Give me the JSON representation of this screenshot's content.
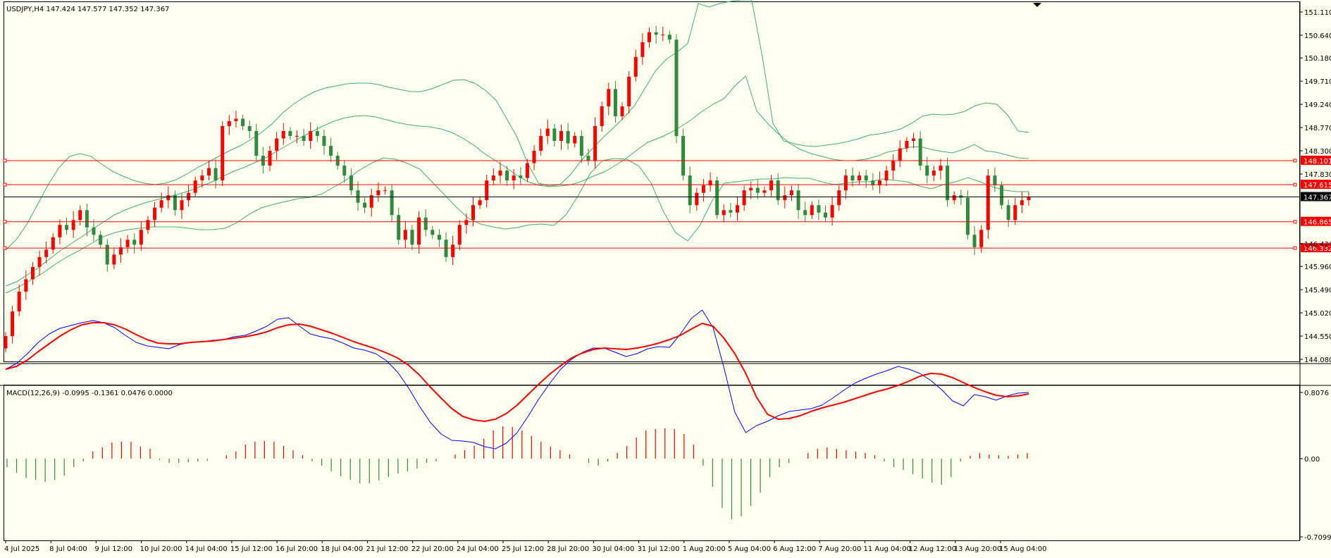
{
  "header": {
    "symbol_info": "USDJPY,H4  147.424 147.577 147.352 147.367",
    "macd_info": "MACD(12,26,9) -0.0995 -0.1361 0.0476 0.0000"
  },
  "colors": {
    "background": "#fffff0",
    "bull": "#ff0000",
    "bear": "#2e8b3e",
    "bands": "#3cb371",
    "level": "#ff0000",
    "macd_line": "#0000ff",
    "signal_line": "#ff0000"
  },
  "chart_data": [
    {
      "type": "candlestick",
      "title": "USDJPY,H4",
      "ylim": [
        144.08,
        151.3
      ],
      "price_ticks": [
        "151.110",
        "150.640",
        "150.180",
        "149.710",
        "149.240",
        "148.770",
        "148.300",
        "147.830",
        "147.367",
        "146.420",
        "145.960",
        "145.490",
        "145.020",
        "144.550",
        "144.080"
      ],
      "x_labels": [
        "4 Jul 2025",
        "8 Jul 04:00",
        "9 Jul 12:00",
        "10 Jul 20:00",
        "14 Jul 04:00",
        "15 Jul 12:00",
        "16 Jul 20:00",
        "18 Jul 04:00",
        "21 Jul 12:00",
        "22 Jul 20:00",
        "24 Jul 04:00",
        "25 Jul 12:00",
        "28 Jul 20:00",
        "30 Jul 04:00",
        "31 Jul 12:00",
        "1 Aug 20:00",
        "5 Aug 04:00",
        "6 Aug 12:00",
        "7 Aug 20:00",
        "11 Aug 04:00",
        "12 Aug 12:00",
        "13 Aug 20:00",
        "15 Aug 04:00"
      ],
      "horizontal_levels": [
        {
          "value": 148.101,
          "label": "148.101"
        },
        {
          "value": 147.615,
          "label": "147.615"
        },
        {
          "value": 146.865,
          "label": "146.865"
        },
        {
          "value": 146.332,
          "label": "146.332"
        }
      ],
      "current_price": {
        "value": 147.367,
        "label": "147.367"
      },
      "closes": [
        144.55,
        145.05,
        145.45,
        145.7,
        145.95,
        146.15,
        146.3,
        146.55,
        146.8,
        146.7,
        146.9,
        147.1,
        146.75,
        146.6,
        146.4,
        146.0,
        146.2,
        146.35,
        146.5,
        146.4,
        146.7,
        146.9,
        147.15,
        147.3,
        147.4,
        147.1,
        147.3,
        147.45,
        147.7,
        147.8,
        147.95,
        147.7,
        148.8,
        148.9,
        148.95,
        148.8,
        148.7,
        148.2,
        148.0,
        148.3,
        148.55,
        148.7,
        148.6,
        148.6,
        148.5,
        148.7,
        148.6,
        148.4,
        148.2,
        148.0,
        147.8,
        147.5,
        147.25,
        147.15,
        147.4,
        147.5,
        147.5,
        147.0,
        146.5,
        146.7,
        146.4,
        146.95,
        146.7,
        146.6,
        146.5,
        146.15,
        146.4,
        146.8,
        146.9,
        147.2,
        147.3,
        147.7,
        147.8,
        147.9,
        147.7,
        147.8,
        147.75,
        148.05,
        148.3,
        148.6,
        148.75,
        148.5,
        148.7,
        148.45,
        148.6,
        148.2,
        148.1,
        148.8,
        149.2,
        149.55,
        149.0,
        149.2,
        149.8,
        150.2,
        150.5,
        150.7,
        150.65,
        150.65,
        150.55,
        148.6,
        147.8,
        147.2,
        147.45,
        147.6,
        147.7,
        147.0,
        147.1,
        147.05,
        147.2,
        147.5,
        147.55,
        147.45,
        147.5,
        147.7,
        147.3,
        147.4,
        147.5,
        147.1,
        147.0,
        147.2,
        147.05,
        146.95,
        147.2,
        147.5,
        147.8,
        147.7,
        147.8,
        147.7,
        147.6,
        147.7,
        147.9,
        148.1,
        148.35,
        148.5,
        148.55,
        148.0,
        147.8,
        147.9,
        148.0,
        147.3,
        147.4,
        147.35,
        146.6,
        146.35,
        146.7,
        147.8,
        147.6,
        147.2,
        146.9,
        147.2,
        147.3,
        147.37
      ],
      "band_middle_px": [
        406,
        400,
        390,
        380,
        368,
        356,
        346,
        336,
        325,
        315,
        305,
        298,
        292,
        287,
        283,
        279,
        275,
        270,
        264,
        258,
        250,
        243,
        237,
        230,
        223,
        214,
        205,
        196,
        188,
        180,
        173,
        168,
        165,
        164,
        166,
        170,
        174,
        177,
        179,
        180,
        183,
        188,
        196,
        206,
        218,
        228,
        238,
        249,
        258,
        263,
        265,
        264,
        262,
        257,
        250,
        244,
        235,
        225,
        213,
        202,
        196,
        189,
        180,
        170,
        158,
        148,
        140,
        122,
        108,
        157,
        175,
        190,
        203,
        212,
        218,
        222,
        226,
        228,
        228,
        226,
        222,
        216,
        213,
        209,
        208,
        212,
        215,
        217,
        212,
        205,
        214,
        216,
        220,
        224,
        225
      ],
      "band_upper_px": [
        355,
        340,
        318,
        290,
        262,
        238,
        222,
        218,
        222,
        233,
        243,
        250,
        256,
        260,
        262,
        260,
        255,
        247,
        238,
        230,
        222,
        214,
        207,
        198,
        188,
        176,
        160,
        148,
        138,
        130,
        125,
        122,
        119,
        118,
        118,
        120,
        124,
        127,
        130,
        130,
        126,
        120,
        114,
        113,
        118,
        128,
        142,
        168,
        195,
        232,
        260,
        264,
        262,
        248,
        228,
        212,
        196,
        182,
        167,
        150,
        125,
        100,
        84,
        74,
        62,
        5,
        10,
        5,
        2,
        0,
        0,
        80,
        175,
        200,
        204,
        207,
        208,
        206,
        204,
        201,
        197,
        192,
        190,
        187,
        183,
        175,
        165,
        162,
        163,
        162,
        158,
        150,
        146,
        148,
        163,
        186,
        188
      ],
      "band_lower_px": [
        416,
        408,
        398,
        388,
        376,
        365,
        356,
        346,
        336,
        330,
        326,
        324,
        322,
        322,
        322,
        324,
        326,
        326,
        324,
        316,
        304,
        295,
        290,
        286,
        282,
        280,
        275,
        265,
        255,
        242,
        232,
        224,
        226,
        232,
        240,
        258,
        276,
        294,
        310,
        318,
        322,
        325,
        323,
        319,
        318,
        320,
        305,
        278,
        246,
        228,
        225,
        226,
        236,
        260,
        300,
        330,
        342,
        320,
        285,
        260,
        258,
        256,
        254,
        254,
        252,
        253,
        253,
        258,
        262,
        260,
        258,
        258,
        254,
        256,
        258,
        264,
        268,
        262,
        258,
        252,
        258,
        265,
        270,
        272,
        272
      ],
      "macd_line_px": [
        524,
        516,
        502,
        486,
        474,
        466,
        462,
        458,
        455,
        458,
        465,
        476,
        486,
        491,
        493,
        495,
        489,
        486,
        485,
        483,
        482,
        478,
        476,
        470,
        463,
        453,
        451,
        463,
        474,
        478,
        481,
        487,
        494,
        497,
        502,
        512,
        528,
        550,
        576,
        599,
        616,
        625,
        626,
        628,
        634,
        637,
        629,
        614,
        591,
        566,
        544,
        524,
        510,
        500,
        494,
        494,
        500,
        506,
        502,
        495,
        492,
        493,
        474,
        452,
        440,
        465,
        522,
        585,
        614,
        604,
        598,
        590,
        584,
        582,
        580,
        575,
        565,
        554,
        544,
        537,
        531,
        526,
        520,
        524,
        530,
        540,
        553,
        569,
        576,
        560,
        563,
        568,
        562,
        558,
        557
      ],
      "signal_line_px": [
        524,
        520,
        511,
        499,
        488,
        477,
        468,
        461,
        458,
        458,
        461,
        467,
        475,
        482,
        487,
        488,
        488,
        486,
        485,
        484,
        482,
        480,
        478,
        475,
        471,
        465,
        461,
        460,
        463,
        468,
        473,
        479,
        485,
        490,
        495,
        501,
        508,
        518,
        532,
        549,
        565,
        580,
        591,
        596,
        598,
        595,
        587,
        575,
        560,
        545,
        531,
        519,
        508,
        501,
        496,
        494,
        495,
        496,
        494,
        491,
        487,
        482,
        476,
        467,
        459,
        463,
        480,
        502,
        530,
        564,
        588,
        595,
        594,
        590,
        584,
        579,
        575,
        571,
        566,
        561,
        556,
        552,
        547,
        541,
        534,
        530,
        531,
        536,
        543,
        550,
        556,
        561,
        563,
        562,
        559
      ],
      "histogram_px": [
        -12,
        -20,
        -27,
        -30,
        -33,
        -30,
        -24,
        -12,
        -4,
        10,
        16,
        23,
        24,
        24,
        17,
        14,
        -2,
        -6,
        -6,
        -5,
        -4,
        -3,
        0,
        5,
        10,
        20,
        24,
        25,
        24,
        18,
        12,
        5,
        -4,
        -10,
        -18,
        -25,
        -30,
        -35,
        -35,
        -31,
        -26,
        -21,
        -18,
        -14,
        -6,
        -4,
        0,
        6,
        12,
        18,
        28,
        40,
        46,
        45,
        40,
        32,
        24,
        17,
        12,
        6,
        0,
        -6,
        -10,
        -4,
        8,
        18,
        30,
        40,
        42,
        43,
        42,
        35,
        20,
        -10,
        -40,
        -70,
        -86,
        -82,
        -67,
        -48,
        -26,
        -12,
        -6,
        0,
        8,
        14,
        16,
        14,
        12,
        10,
        8,
        5,
        -4,
        -12,
        -16,
        -22,
        -28,
        -34,
        -37,
        -26,
        -4,
        4,
        8,
        6,
        5,
        4,
        6,
        8
      ],
      "macd_ticks": [
        "0.8076",
        "0.00",
        "-0.7099"
      ]
    }
  ]
}
